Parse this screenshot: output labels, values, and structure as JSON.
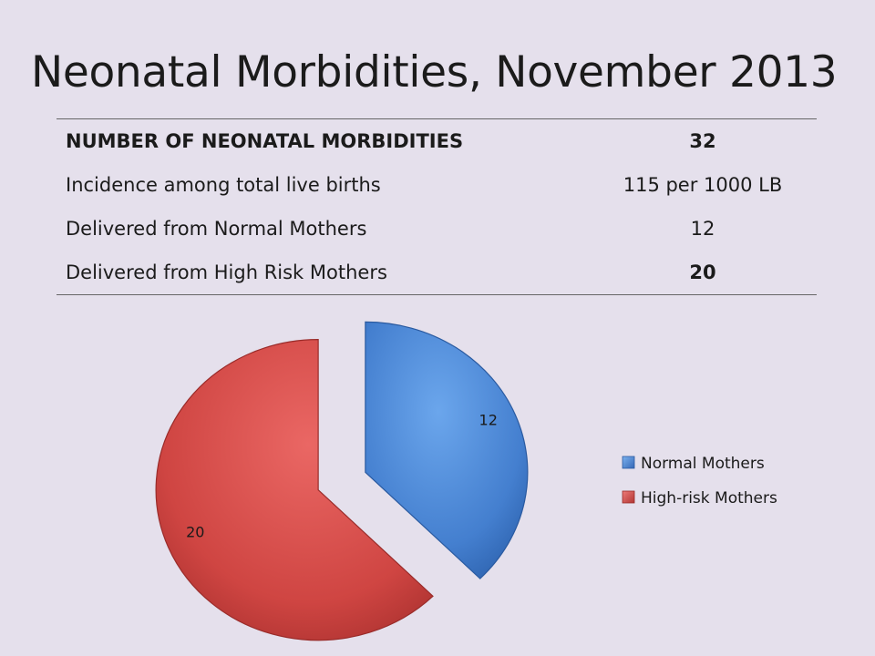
{
  "title": "Neonatal Morbidities, November 2013",
  "table": {
    "rows": [
      {
        "label": "NUMBER OF NEONATAL MORBIDITIES",
        "value": "32",
        "bold_label": true,
        "bold_value": true
      },
      {
        "label": "Incidence among total live births",
        "value": "115 per 1000 LB",
        "bold_label": false,
        "bold_value": false
      },
      {
        "label": "Delivered from Normal Mothers",
        "value": "12",
        "bold_label": false,
        "bold_value": false
      },
      {
        "label": "Delivered from High Risk Mothers",
        "value": "20",
        "bold_label": false,
        "bold_value": true
      }
    ]
  },
  "chart_data": {
    "type": "pie",
    "title": "",
    "categories": [
      "Normal Mothers",
      "High-risk Mothers"
    ],
    "values": [
      12,
      20
    ],
    "data_labels": [
      "12",
      "20"
    ],
    "colors": [
      "#4a86d4",
      "#d24a47"
    ],
    "exploded": true,
    "legend_position": "right"
  }
}
